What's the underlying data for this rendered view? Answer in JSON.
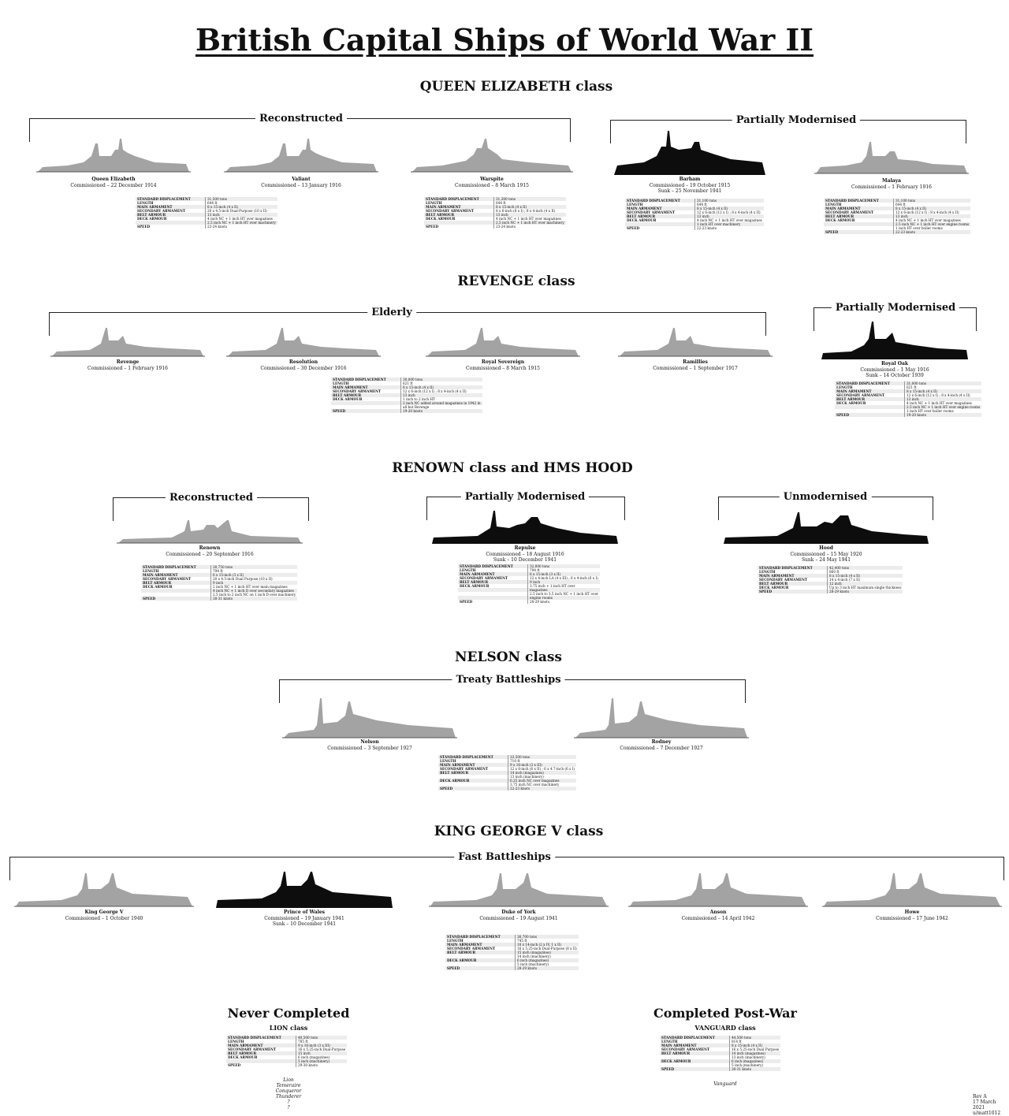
{
  "title": "British Capital Ships of World War II",
  "classes": {
    "qe": {
      "heading": "QUEEN ELIZABETH class",
      "groups": [
        "Reconstructed",
        "Partially Modernised"
      ]
    },
    "rev": {
      "heading": "REVENGE class",
      "groups": [
        "Elderly",
        "Partially Modernised"
      ]
    },
    "ren": {
      "heading": "RENOWN class and HMS HOOD",
      "groups": [
        "Reconstructed",
        "Partially Modernised",
        "Unmodernised"
      ]
    },
    "nel": {
      "heading": "NELSON class",
      "groups": [
        "Treaty Battleships"
      ]
    },
    "kgv": {
      "heading": "KING GEORGE V class",
      "groups": [
        "Fast Battleships"
      ]
    }
  },
  "ships": {
    "qe1": {
      "name": "Queen Elizabeth",
      "line1": "Commissioned – 22 December 1914",
      "line2": ""
    },
    "qe2": {
      "name": "Valiant",
      "line1": "Commissioned – 13 January 1916",
      "line2": ""
    },
    "qe3": {
      "name": "Warspite",
      "line1": "Commissioned – 8 March 1915",
      "line2": ""
    },
    "qe4": {
      "name": "Barham",
      "line1": "Commissioned – 19 October 1915",
      "line2": "Sunk – 25 November 1941"
    },
    "qe5": {
      "name": "Malaya",
      "line1": "Commissioned – 1 February 1916",
      "line2": ""
    },
    "rv1": {
      "name": "Revenge",
      "line1": "Commissioned – 1 February 1916",
      "line2": ""
    },
    "rv2": {
      "name": "Resolution",
      "line1": "Commissioned – 30 December 1916",
      "line2": ""
    },
    "rv3": {
      "name": "Royal Sovereign",
      "line1": "Commissioned – 8 March 1915",
      "line2": ""
    },
    "rv4": {
      "name": "Ramillies",
      "line1": "Commissioned – 1 September 1917",
      "line2": ""
    },
    "rv5": {
      "name": "Royal Oak",
      "line1": "Commissioned – 1 May 1916",
      "line2": "Sunk – 14 October 1939"
    },
    "rn1": {
      "name": "Renown",
      "line1": "Commissioned – 20 September 1916",
      "line2": ""
    },
    "rn2": {
      "name": "Repulse",
      "line1": "Commissioned – 18 August 1916",
      "line2": "Sunk – 10 December 1941"
    },
    "rn3": {
      "name": "Hood",
      "line1": "Commissioned – 15 May 1920",
      "line2": "Sunk – 24 May 1941"
    },
    "ne1": {
      "name": "Nelson",
      "line1": "Commissioned – 3 September 1927",
      "line2": ""
    },
    "ne2": {
      "name": "Rodney",
      "line1": "Commissioned – 7 December 1927",
      "line2": ""
    },
    "kg1": {
      "name": "King George V",
      "line1": "Commissioned – 1 October 1940",
      "line2": ""
    },
    "kg2": {
      "name": "Prince of Wales",
      "line1": "Commissioned – 19 January 1941",
      "line2": "Sunk – 10 December 1941"
    },
    "kg3": {
      "name": "Duke of York",
      "line1": "Commissioned – 19 August 1941",
      "line2": ""
    },
    "kg4": {
      "name": "Anson",
      "line1": "Commissioned – 14 April 1942",
      "line2": ""
    },
    "kg5": {
      "name": "Howe",
      "line1": "Commissioned – 17 June 1942",
      "line2": ""
    }
  },
  "spec_labels": [
    "STANDARD DISPLACEMENT",
    "LENGTH",
    "MAIN ARMAMENT",
    "SECONDARY ARMAMENT",
    "BELT ARMOUR",
    "DECK ARMOUR",
    "SPEED"
  ],
  "specs": {
    "qe_recon": [
      [
        "STANDARD DISPLACEMENT",
        "31,500 tons"
      ],
      [
        "LENGTH",
        "644 ft"
      ],
      [
        "MAIN ARMAMENT",
        "8 x 15-inch (4 x II)"
      ],
      [
        "SECONDARY ARMAMENT",
        "20 x 4.5-inch Dual-Purpose (10 x II)"
      ],
      [
        "BELT ARMOUR",
        "13 inch"
      ],
      [
        "DECK ARMOUR",
        "4 inch NC + 1 inch HT over magazines"
      ],
      [
        "",
        "2.5 inch NC + 1 inch HT over machinery"
      ],
      [
        "SPEED",
        "23-24 knots"
      ]
    ],
    "warspite": [
      [
        "STANDARD DISPLACEMENT",
        "31,300 tons"
      ],
      [
        "LENGTH",
        "644 ft"
      ],
      [
        "MAIN ARMAMENT",
        "8 x 15-inch (4 x II)"
      ],
      [
        "SECONDARY ARMAMENT",
        "8 x 6-inch (8 x I) ; 8 x 4-inch (4 x II)"
      ],
      [
        "BELT ARMOUR",
        "13 inch"
      ],
      [
        "DECK ARMOUR",
        "4 inch NC + 1 inch HT over magazines"
      ],
      [
        "",
        "2.5 inch NC + 1 inch HT over machinery"
      ],
      [
        "SPEED",
        "23-24 knots"
      ]
    ],
    "barham": [
      [
        "STANDARD DISPLACEMENT",
        "31,100 tons"
      ],
      [
        "LENGTH",
        "644 ft"
      ],
      [
        "MAIN ARMAMENT",
        "8 x 15-inch (4 x II)"
      ],
      [
        "SECONDARY ARMAMENT",
        "12 x 6-inch (12 x I) ; 8 x 4-inch (4 x II)"
      ],
      [
        "BELT ARMOUR",
        "13 inch"
      ],
      [
        "DECK ARMOUR",
        "4 inch NC + 1 inch HT over magazines"
      ],
      [
        "",
        "1 inch HT over machinery"
      ],
      [
        "SPEED",
        "22-23 knots"
      ]
    ],
    "malaya": [
      [
        "STANDARD DISPLACEMENT",
        "31,100 tons"
      ],
      [
        "LENGTH",
        "644 ft"
      ],
      [
        "MAIN ARMAMENT",
        "8 x 15-inch (4 x II)"
      ],
      [
        "SECONDARY ARMAMENT",
        "12 x 6-inch (12 x I) ; 8 x 4-inch (4 x II)"
      ],
      [
        "BELT ARMOUR",
        "13 inch"
      ],
      [
        "DECK ARMOUR",
        "4 inch NC + 1 inch HT over magazines"
      ],
      [
        "",
        "2.5 inch NC + 1 inch HT over engine rooms"
      ],
      [
        "",
        "1 inch HT over boiler rooms"
      ],
      [
        "SPEED",
        "22-23 knots"
      ]
    ],
    "revenge": [
      [
        "STANDARD DISPLACEMENT",
        "30,000 tons"
      ],
      [
        "LENGTH",
        "621 ft"
      ],
      [
        "MAIN ARMAMENT",
        "8 x 15-inch (4 x II)"
      ],
      [
        "SECONDARY ARMAMENT",
        "12 x 6-inch (12 x I) ; 8 x 4-inch (4 x II)"
      ],
      [
        "BELT ARMOUR",
        "13 inch"
      ],
      [
        "DECK ARMOUR",
        "1 inch to 2 inch HT"
      ],
      [
        "",
        "2 inch NC added around magazines in 1942 in"
      ],
      [
        "",
        "all but Revenge"
      ],
      [
        "SPEED",
        "19-20 knots"
      ]
    ],
    "royaloak": [
      [
        "STANDARD DISPLACEMENT",
        "31,000 tons"
      ],
      [
        "LENGTH",
        "621 ft"
      ],
      [
        "MAIN ARMAMENT",
        "8 x 15-inch (4 x II)"
      ],
      [
        "SECONDARY ARMAMENT",
        "12 x 6-inch (12 x I) ; 8 x 4-inch (4 x II)"
      ],
      [
        "BELT ARMOUR",
        "13 inch"
      ],
      [
        "DECK ARMOUR",
        "4 inch NC + 1 inch HT over magazines"
      ],
      [
        "",
        "2.5 inch NC + 1 inch HT over engine rooms"
      ],
      [
        "",
        "1 inch HT over boiler rooms"
      ],
      [
        "SPEED",
        "19-20 knots"
      ]
    ],
    "renown": [
      [
        "STANDARD DISPLACEMENT",
        "30,750 tons"
      ],
      [
        "LENGTH",
        "794 ft"
      ],
      [
        "MAIN ARMAMENT",
        "6 x 15-inch (3 x II)"
      ],
      [
        "SECONDARY ARMAMENT",
        "20 x 4.5-inch Dual Purpose (10 x II)"
      ],
      [
        "BELT ARMOUR",
        "9 inch"
      ],
      [
        "DECK ARMOUR",
        "2 inch NC + 1 inch HT over main magazines"
      ],
      [
        "",
        "4 inch NC + 1 inch D over secondary magazines"
      ],
      [
        "",
        "2.5 inch to 2 inch NC on 1 inch D over machinery"
      ],
      [
        "SPEED",
        "30-31 knots"
      ]
    ],
    "repulse": [
      [
        "STANDARD DISPLACEMENT",
        "32,000 tons"
      ],
      [
        "LENGTH",
        "794 ft"
      ],
      [
        "MAIN ARMAMENT",
        "6 x 15-inch (3 x II)"
      ],
      [
        "SECONDARY ARMAMENT",
        "12 x 4-inch LA (4 x III) ; 6 x 4-inch (6 x I)"
      ],
      [
        "BELT ARMOUR",
        "9 inch"
      ],
      [
        "DECK ARMOUR",
        "3.75 inch + 1 inch HT over"
      ],
      [
        "",
        "magazines"
      ],
      [
        "",
        "2.5 inch to 3.5 inch NC + 1 inch HT over"
      ],
      [
        "",
        "engine rooms"
      ],
      [
        "SPEED",
        "28-29 knots"
      ]
    ],
    "hood": [
      [
        "STANDARD DISPLACEMENT",
        "42,400 tons"
      ],
      [
        "LENGTH",
        "860 ft"
      ],
      [
        "MAIN ARMAMENT",
        "8 x 15-inch (4 x II)"
      ],
      [
        "SECONDARY ARMAMENT",
        "14 x 4-inch (7 x II)"
      ],
      [
        "BELT ARMOUR",
        "12 inch"
      ],
      [
        "DECK ARMOUR",
        "Up to 3 inch HT maximum single thickness"
      ],
      [
        "SPEED",
        "28-29 knots"
      ]
    ],
    "nelson": [
      [
        "STANDARD DISPLACEMENT",
        "33,500 tons"
      ],
      [
        "LENGTH",
        "710 ft"
      ],
      [
        "MAIN ARMAMENT",
        "9 x 16-inch (3 x III)"
      ],
      [
        "SECONDARY ARMAMENT",
        "12 x 6-inch (6 x II) ; 6 x 4.7-inch (6 x I)"
      ],
      [
        "BELT ARMOUR",
        "14 inch (magazines)"
      ],
      [
        "",
        "13 inch (machinery)"
      ],
      [
        "DECK ARMOUR",
        "6.25 inch NC over magazines"
      ],
      [
        "",
        "3.75 inch NC over machinery"
      ],
      [
        "SPEED",
        "22-23 knots"
      ]
    ],
    "kgv": [
      [
        "STANDARD DISPLACEMENT",
        "36,700 tons"
      ],
      [
        "LENGTH",
        "745 ft"
      ],
      [
        "MAIN ARMAMENT",
        "10 x 14-inch (2 x IV, 1 x II)"
      ],
      [
        "SECONDARY ARMAMENT",
        "16 x 5.25-inch Dual-Purpose (8 x II)"
      ],
      [
        "BELT ARMOUR",
        "15 inch (magazines)"
      ],
      [
        "",
        "14 inch (machinery)"
      ],
      [
        "DECK ARMOUR",
        "6 inch (magazines)"
      ],
      [
        "",
        "5 inch (machinery)"
      ],
      [
        "SPEED",
        "28-29 knots"
      ]
    ],
    "lion": [
      [
        "STANDARD DISPLACEMENT",
        "40,500 tons"
      ],
      [
        "LENGTH",
        "785 ft"
      ],
      [
        "MAIN ARMAMENT",
        "9 x 16-inch (3 x III)"
      ],
      [
        "SECONDARY ARMAMENT",
        "16 x 5.25-inch Dual-Purpose"
      ],
      [
        "BELT ARMOUR",
        "15 inch"
      ],
      [
        "DECK ARMOUR",
        "6 inch (magazines)"
      ],
      [
        "",
        "5 inch (machinery)"
      ],
      [
        "SPEED",
        "29-30 knots"
      ]
    ],
    "vanguard": [
      [
        "STANDARD DISPLACEMENT",
        "44,500 tons"
      ],
      [
        "LENGTH",
        "814 ft"
      ],
      [
        "MAIN ARMAMENT",
        "8 x 15-inch (4 x II)"
      ],
      [
        "SECONDARY ARMAMENT",
        "16 x 5.25-inch Dual Purpose"
      ],
      [
        "BELT ARMOUR",
        "14 inch (magazines)"
      ],
      [
        "",
        "13 inch (machinery)"
      ],
      [
        "DECK ARMOUR",
        "6 inch (magazines)"
      ],
      [
        "",
        "5 inch (machinery)"
      ],
      [
        "SPEED",
        "30-31 knots"
      ]
    ]
  },
  "never": {
    "heading": "Never Completed",
    "sub": "LION class",
    "names": [
      "Lion",
      "Temeraire",
      "Conqueror",
      "Thunderer",
      "?",
      "?"
    ]
  },
  "post": {
    "heading": "Completed Post-War",
    "sub": "VANGUARD class",
    "names": [
      "Vanguard"
    ]
  },
  "rev_note": [
    "Rev A",
    "17 March 2021",
    "u/matt1012"
  ],
  "colors": {
    "grey_ship": "#9a9a9a",
    "black_ship": "#0d0d0d"
  }
}
